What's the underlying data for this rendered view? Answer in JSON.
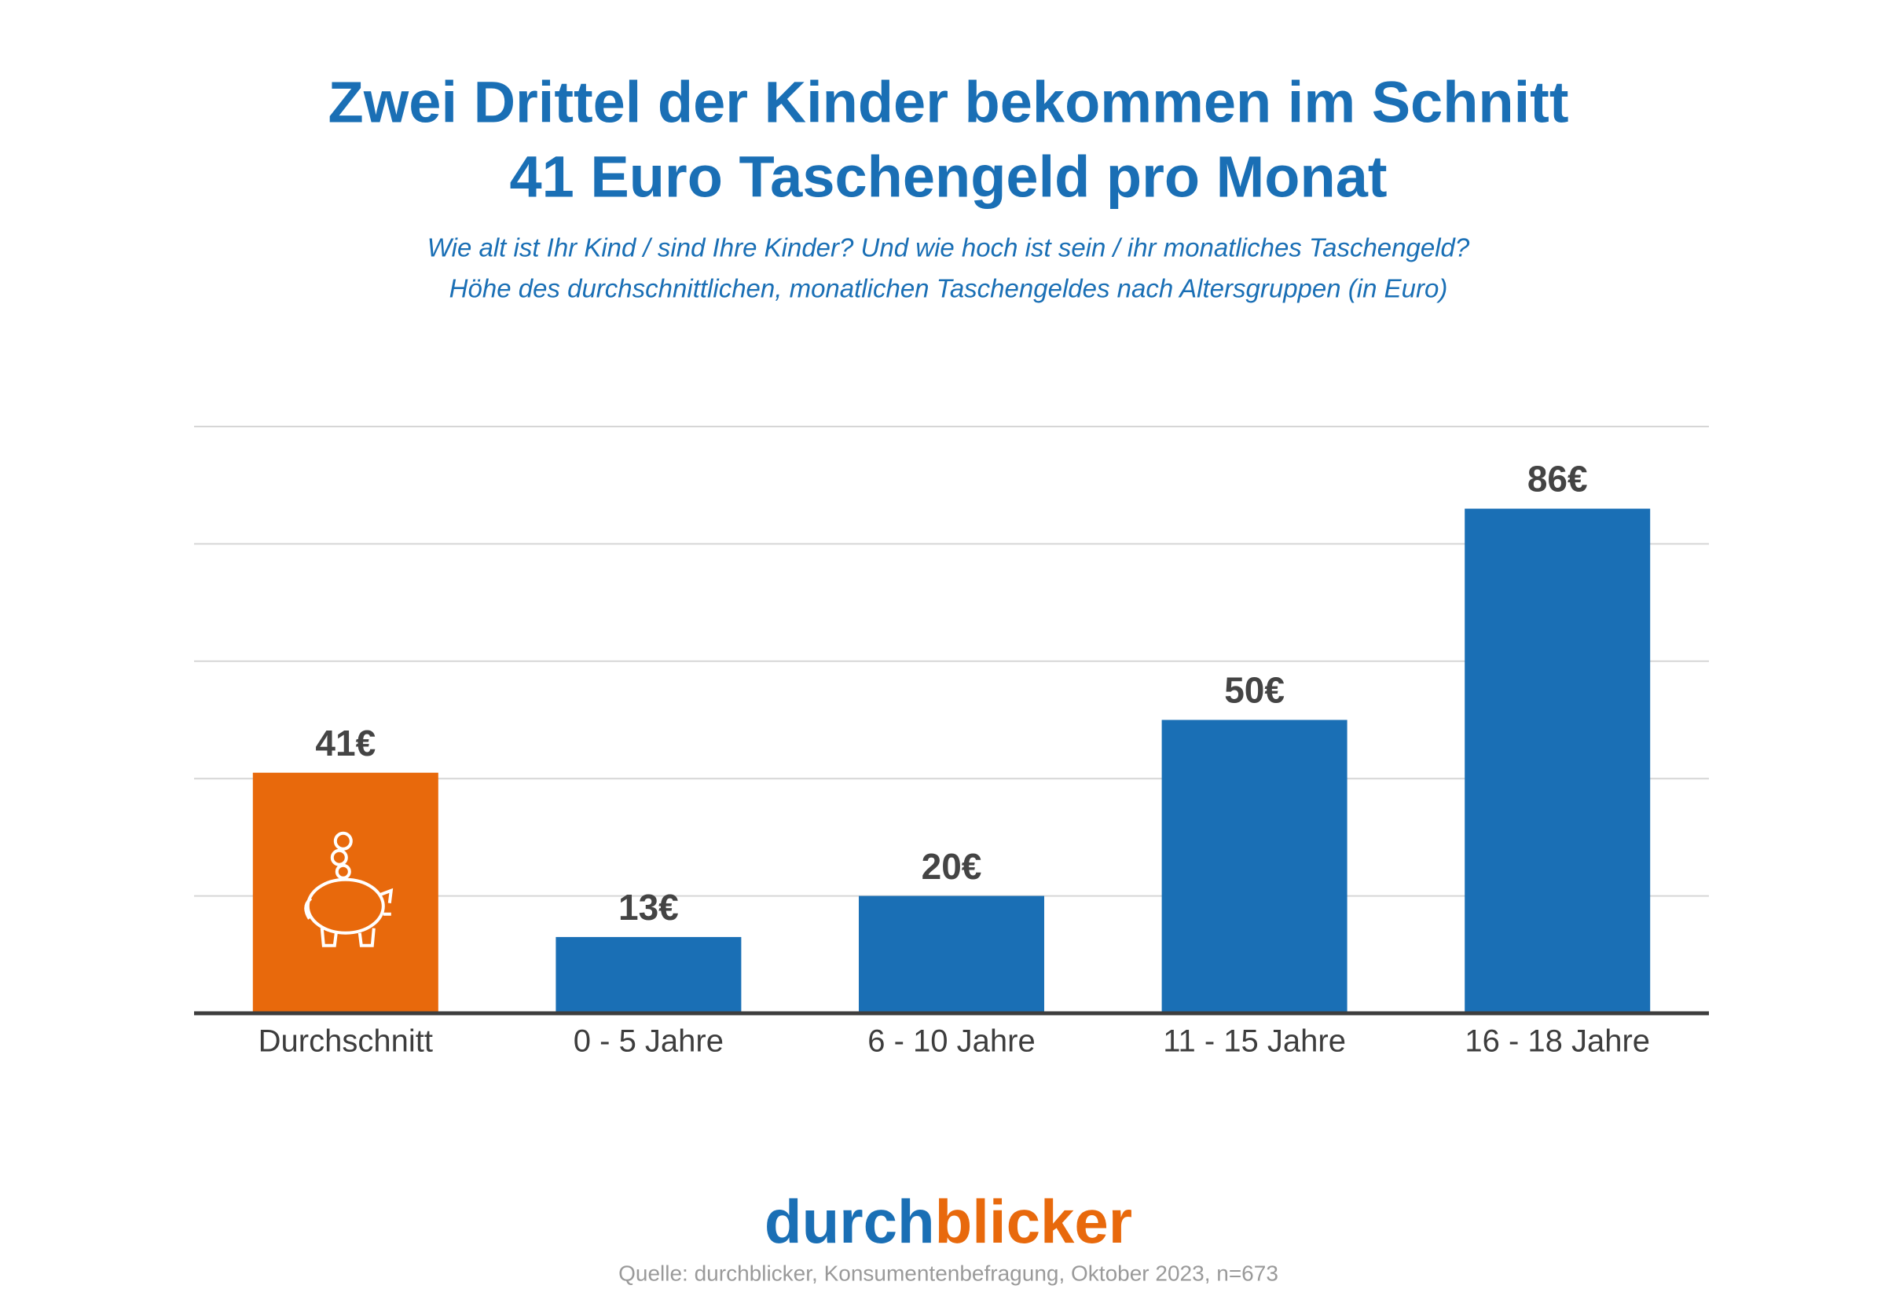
{
  "chart_data": {
    "type": "bar",
    "title": [
      "Zwei Drittel der Kinder bekommen im Schnitt",
      "41 Euro Taschengeld pro Monat"
    ],
    "subtitle": [
      "Wie alt ist Ihr Kind / sind Ihre Kinder? Und wie hoch ist sein / ihr monatliches Taschengeld?",
      "Höhe des durchschnittlichen, monatlichen Taschengeldes nach Altersgruppen (in Euro)"
    ],
    "categories": [
      "Durchschnitt",
      "0 - 5 Jahre",
      "6 - 10 Jahre",
      "11 - 15 Jahre",
      "16 - 18 Jahre"
    ],
    "values": [
      41,
      13,
      20,
      50,
      86
    ],
    "value_labels": [
      "41€",
      "13€",
      "20€",
      "50€",
      "86€"
    ],
    "colors": [
      "#e8690c",
      "#1a6fb5",
      "#1a6fb5",
      "#1a6fb5",
      "#1a6fb5"
    ],
    "ylim": [
      0,
      100
    ],
    "yticks": [
      0,
      20,
      40,
      60,
      80,
      100
    ],
    "grid": true,
    "logo": [
      {
        "text": "durch",
        "color": "#1a6fb5"
      },
      {
        "text": "blicker",
        "color": "#e8690c"
      }
    ],
    "source": "Quelle: durchblicker, Konsumentenbefragung, Oktober 2023, n=673"
  }
}
